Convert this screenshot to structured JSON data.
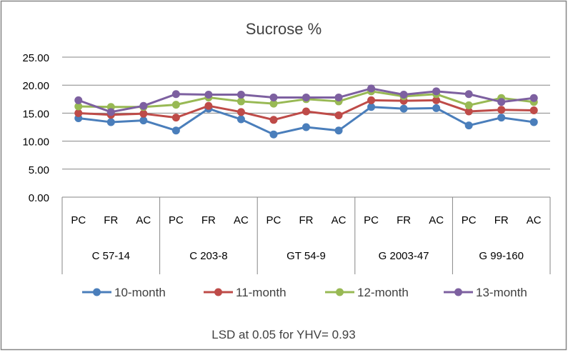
{
  "chart_data": {
    "type": "line",
    "title": "Sucrose %",
    "xlabel": "",
    "ylabel": "",
    "ylim": [
      0,
      25
    ],
    "yticks": [
      "0.00",
      "5.00",
      "10.00",
      "15.00",
      "20.00",
      "25.00"
    ],
    "grid": true,
    "legend_position": "bottom",
    "groups": [
      "C 57-14",
      "C 203-8",
      "GT 54-9",
      "G 2003-47",
      "G 99-160"
    ],
    "categories": [
      "PC",
      "FR",
      "AC",
      "PC",
      "FR",
      "AC",
      "PC",
      "FR",
      "AC",
      "PC",
      "FR",
      "AC",
      "PC",
      "FR",
      "AC"
    ],
    "series": [
      {
        "name": "10-month",
        "color": "#4a7ebb",
        "values": [
          14.1,
          13.4,
          13.7,
          11.9,
          15.8,
          13.9,
          11.2,
          12.5,
          11.9,
          16.1,
          15.8,
          15.9,
          12.8,
          14.2,
          13.4
        ]
      },
      {
        "name": "11-month",
        "color": "#be4b48",
        "values": [
          15.0,
          14.7,
          14.9,
          14.2,
          16.3,
          15.2,
          13.8,
          15.3,
          14.6,
          17.3,
          17.2,
          17.3,
          15.3,
          15.6,
          15.5
        ]
      },
      {
        "name": "12-month",
        "color": "#98b954",
        "values": [
          16.2,
          16.1,
          16.1,
          16.5,
          17.8,
          17.1,
          16.7,
          17.5,
          17.1,
          18.9,
          18.0,
          18.4,
          16.4,
          17.7,
          17.0
        ]
      },
      {
        "name": "13-month",
        "color": "#7d60a0",
        "values": [
          17.3,
          15.2,
          16.3,
          18.4,
          18.3,
          18.3,
          17.8,
          17.8,
          17.8,
          19.4,
          18.3,
          18.9,
          18.4,
          17.0,
          17.7
        ]
      }
    ],
    "footnote": "LSD at 0.05 for YHV= 0.93"
  },
  "colors": {
    "grid": "#868686",
    "axis": "#868686",
    "frame": "#868686",
    "text": "#404040",
    "tick_text": "#000000"
  }
}
